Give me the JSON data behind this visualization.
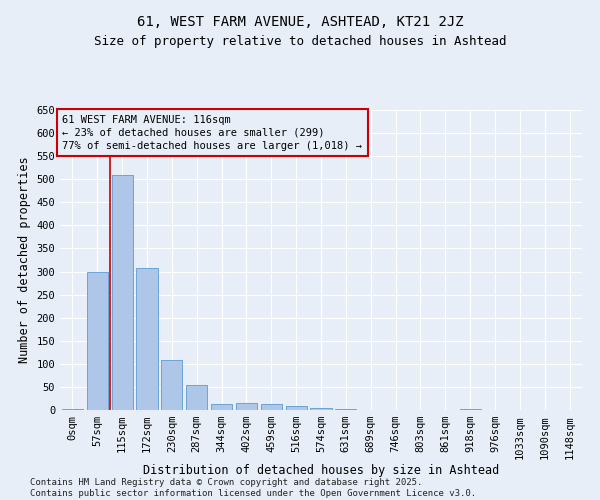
{
  "title": "61, WEST FARM AVENUE, ASHTEAD, KT21 2JZ",
  "subtitle": "Size of property relative to detached houses in Ashtead",
  "xlabel": "Distribution of detached houses by size in Ashtead",
  "ylabel": "Number of detached properties",
  "bar_labels": [
    "0sqm",
    "57sqm",
    "115sqm",
    "172sqm",
    "230sqm",
    "287sqm",
    "344sqm",
    "402sqm",
    "459sqm",
    "516sqm",
    "574sqm",
    "631sqm",
    "689sqm",
    "746sqm",
    "803sqm",
    "861sqm",
    "918sqm",
    "976sqm",
    "1033sqm",
    "1090sqm",
    "1148sqm"
  ],
  "bar_values": [
    3,
    300,
    510,
    307,
    108,
    54,
    13,
    15,
    12,
    9,
    5,
    2,
    0,
    0,
    0,
    0,
    3,
    0,
    1,
    0,
    1
  ],
  "bar_color": "#aec6e8",
  "bar_edge_color": "#5b9bd5",
  "vline_x_index": 2,
  "vline_color": "#cc0000",
  "annotation_text": "61 WEST FARM AVENUE: 116sqm\n← 23% of detached houses are smaller (299)\n77% of semi-detached houses are larger (1,018) →",
  "annotation_box_color": "#cc0000",
  "ylim": [
    0,
    650
  ],
  "yticks": [
    0,
    50,
    100,
    150,
    200,
    250,
    300,
    350,
    400,
    450,
    500,
    550,
    600,
    650
  ],
  "footer": "Contains HM Land Registry data © Crown copyright and database right 2025.\nContains public sector information licensed under the Open Government Licence v3.0.",
  "bg_color": "#e8eef7",
  "grid_color": "#ffffff",
  "title_fontsize": 10,
  "subtitle_fontsize": 9,
  "axis_label_fontsize": 8.5,
  "tick_fontsize": 7.5,
  "annotation_fontsize": 7.5,
  "footer_fontsize": 6.5
}
